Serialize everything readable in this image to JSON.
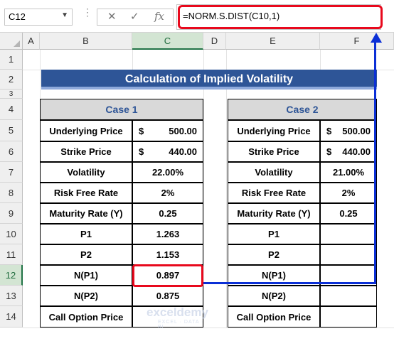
{
  "formula_bar": {
    "name_box": "C12",
    "cancel_symbol": "✕",
    "enter_symbol": "✓",
    "fx_label": "fx",
    "formula": "=NORM.S.DIST(C10,1)"
  },
  "columns": [
    "A",
    "B",
    "C",
    "D",
    "E",
    "F"
  ],
  "rows": [
    "1",
    "2",
    "3",
    "4",
    "5",
    "6",
    "7",
    "8",
    "9",
    "10",
    "11",
    "12",
    "13",
    "14"
  ],
  "selected_cell": {
    "column": "C",
    "row": "12"
  },
  "title": "Calculation of Implied Volatility",
  "case1": {
    "header": "Case 1",
    "rows": [
      {
        "label": "Underlying Price",
        "currency": "$",
        "value": "500.00"
      },
      {
        "label": "Strike Price",
        "currency": "$",
        "value": "440.00"
      },
      {
        "label": "Volatility",
        "currency": "",
        "value": "22.00%"
      },
      {
        "label": "Risk Free Rate",
        "currency": "",
        "value": "2%"
      },
      {
        "label": "Maturity Rate (Y)",
        "currency": "",
        "value": "0.25"
      },
      {
        "label": "P1",
        "currency": "",
        "value": "1.263"
      },
      {
        "label": "P2",
        "currency": "",
        "value": "1.153"
      },
      {
        "label": "N(P1)",
        "currency": "",
        "value": "0.897"
      },
      {
        "label": "N(P2)",
        "currency": "",
        "value": "0.875"
      },
      {
        "label": "Call Option Price",
        "currency": "",
        "value": ""
      }
    ]
  },
  "case2": {
    "header": "Case 2",
    "rows": [
      {
        "label": "Underlying Price",
        "currency": "$",
        "value": "500.00"
      },
      {
        "label": "Strike Price",
        "currency": "$",
        "value": "440.00"
      },
      {
        "label": "Volatility",
        "currency": "",
        "value": "21.00%"
      },
      {
        "label": "Risk Free Rate",
        "currency": "",
        "value": "2%"
      },
      {
        "label": "Maturity Rate (Y)",
        "currency": "",
        "value": "0.25"
      },
      {
        "label": "P1",
        "currency": "",
        "value": ""
      },
      {
        "label": "P2",
        "currency": "",
        "value": ""
      },
      {
        "label": "N(P1)",
        "currency": "",
        "value": ""
      },
      {
        "label": "N(P2)",
        "currency": "",
        "value": ""
      },
      {
        "label": "Call Option Price",
        "currency": "",
        "value": ""
      }
    ]
  },
  "watermark": {
    "brand": "exceldemy",
    "tagline": "EXCEL · DATA · BI"
  },
  "colors": {
    "title_bg": "#2e5597",
    "highlight": "#e8091d",
    "arrow": "#0b2fd6",
    "header_fill": "#d9d9d9"
  }
}
